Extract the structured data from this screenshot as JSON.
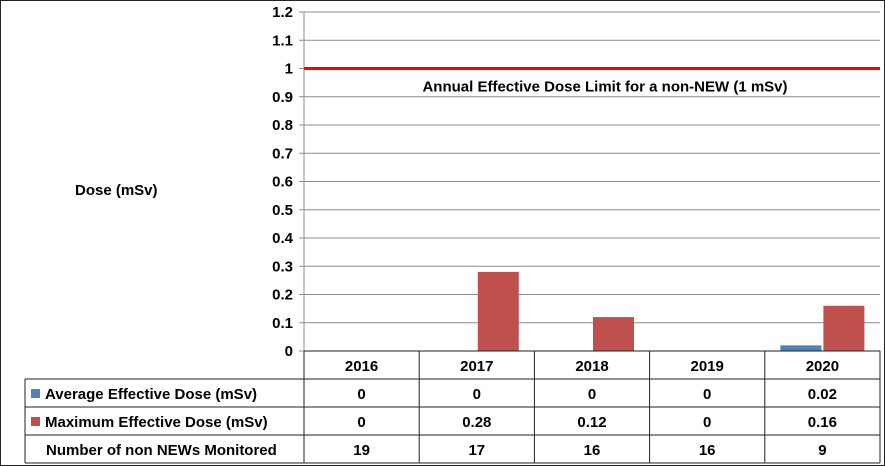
{
  "chart_data": {
    "type": "bar",
    "ylabel": "Dose (mSv)",
    "ylim": [
      0,
      1.2
    ],
    "yticks": [
      "0",
      "0.1",
      "0.2",
      "0.3",
      "0.4",
      "0.5",
      "0.6",
      "0.7",
      "0.8",
      "0.9",
      "1",
      "1.1",
      "1.2"
    ],
    "grid": true,
    "categories": [
      "2016",
      "2017",
      "2018",
      "2019",
      "2020"
    ],
    "series": [
      {
        "name": "Average Effective Dose (mSv)",
        "color": "#4f81bd",
        "values": [
          0,
          0,
          0,
          0,
          0.02
        ],
        "labels": [
          "0",
          "0",
          "0",
          "0",
          "0.02"
        ]
      },
      {
        "name": "Maximum Effective Dose (mSv)",
        "color": "#c0504d",
        "values": [
          0,
          0.28,
          0.12,
          0,
          0.16
        ],
        "labels": [
          "0",
          "0.28",
          "0.12",
          "0",
          "0.16"
        ]
      }
    ],
    "reference_line": {
      "value": 1,
      "color": "#ff0000",
      "label": "Annual Effective Dose Limit for a non-NEW (1 mSv)"
    },
    "table_extra_row": {
      "label": "Number of non NEWs Monitored",
      "values": [
        "19",
        "17",
        "16",
        "16",
        "9"
      ]
    }
  }
}
